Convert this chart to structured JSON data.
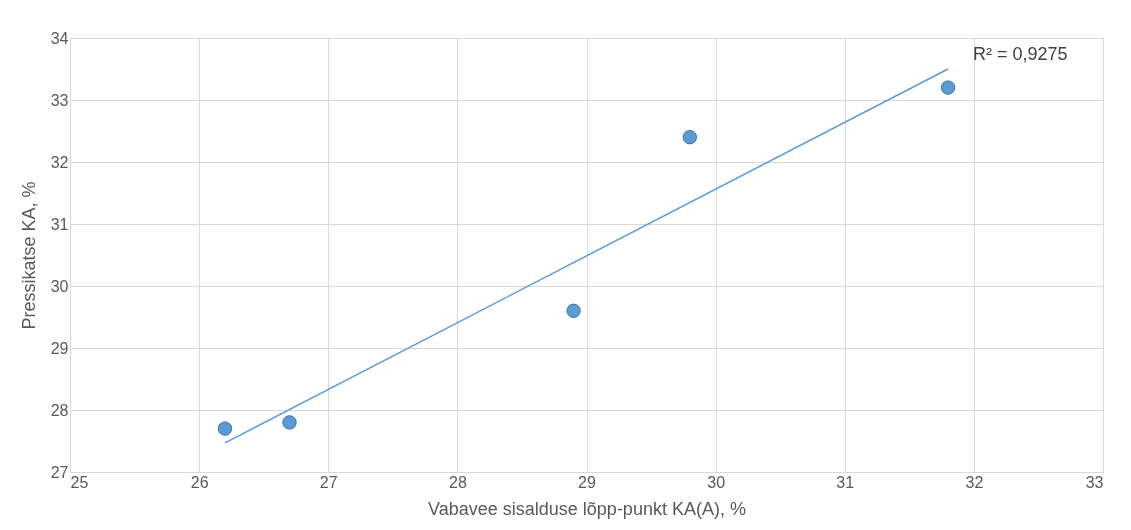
{
  "chart_data": {
    "type": "scatter",
    "xlabel": "Vabavee sisalduse lõpp-punkt KA(A), %",
    "ylabel": "Pressikatse KA, %",
    "x": [
      26.2,
      26.7,
      28.9,
      29.8,
      31.8
    ],
    "series": [
      {
        "color": "#5b9bd5",
        "values": [
          27.7,
          27.8,
          29.6,
          32.4,
          33.2
        ]
      },
      {
        "type": "line",
        "marker": "none",
        "color": "#5b9bd5",
        "x": [
          26.2,
          31.8
        ],
        "values": [
          27.47,
          33.5
        ]
      }
    ],
    "annotations": [
      {
        "text": "R² = 0,9275",
        "x": 31.8,
        "y": 33.5
      }
    ],
    "xlim": [
      25,
      33
    ],
    "xticks": [
      25,
      26,
      27,
      28,
      29,
      30,
      31,
      32,
      33
    ],
    "ylim": [
      27,
      34
    ],
    "yticks": [
      27,
      28,
      29,
      30,
      31,
      32,
      33,
      34
    ],
    "grid": true,
    "marker": "circle"
  }
}
